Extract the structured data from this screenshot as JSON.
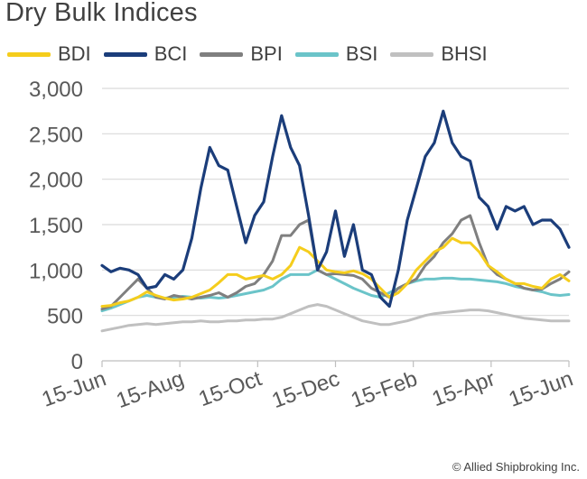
{
  "chart_data": {
    "type": "line",
    "title": "Dry Bulk Indices",
    "xlabel": "",
    "ylabel": "",
    "x_ticks": [
      "15-Jun",
      "15-Aug",
      "15-Oct",
      "15-Dec",
      "15-Feb",
      "15-Apr",
      "15-Jun"
    ],
    "y_ticks": [
      0,
      500,
      1000,
      1500,
      2000,
      2500,
      3000
    ],
    "y_tick_labels": [
      "0",
      "500",
      "1,000",
      "1,500",
      "2,000",
      "2,500",
      "3,000"
    ],
    "ylim": [
      0,
      3000
    ],
    "xlim": [
      0,
      52
    ],
    "grid": "horizontal",
    "legend_position": "top",
    "series": [
      {
        "name": "BDI",
        "color": "#f5cd1c",
        "x": [
          0,
          1,
          2,
          3,
          4,
          5,
          6,
          7,
          8,
          9,
          10,
          11,
          12,
          13,
          14,
          15,
          16,
          17,
          18,
          19,
          20,
          21,
          22,
          23,
          24,
          25,
          26,
          27,
          28,
          29,
          30,
          31,
          32,
          33,
          34,
          35,
          36,
          37,
          38,
          39,
          40,
          41,
          42,
          43,
          44,
          45,
          46,
          47,
          48,
          49,
          50,
          51,
          52
        ],
        "values": [
          600,
          610,
          640,
          660,
          700,
          760,
          720,
          690,
          670,
          680,
          700,
          740,
          780,
          860,
          950,
          950,
          900,
          920,
          940,
          900,
          950,
          1050,
          1250,
          1200,
          1100,
          1000,
          980,
          970,
          990,
          960,
          900,
          800,
          700,
          750,
          850,
          1000,
          1100,
          1200,
          1250,
          1350,
          1300,
          1300,
          1200,
          1050,
          980,
          900,
          850,
          850,
          820,
          800,
          900,
          950,
          880
        ]
      },
      {
        "name": "BCI",
        "color": "#1b3d7a",
        "x": [
          0,
          1,
          2,
          3,
          4,
          5,
          6,
          7,
          8,
          9,
          10,
          11,
          12,
          13,
          14,
          15,
          16,
          17,
          18,
          19,
          20,
          21,
          22,
          23,
          24,
          25,
          26,
          27,
          28,
          29,
          30,
          31,
          32,
          33,
          34,
          35,
          36,
          37,
          38,
          39,
          40,
          41,
          42,
          43,
          44,
          45,
          46,
          47,
          48,
          49,
          50,
          51,
          52
        ],
        "values": [
          1050,
          980,
          1020,
          1000,
          950,
          800,
          820,
          950,
          900,
          1000,
          1350,
          1900,
          2350,
          2150,
          2100,
          1700,
          1300,
          1600,
          1750,
          2250,
          2700,
          2350,
          2150,
          1600,
          1000,
          1200,
          1650,
          1150,
          1500,
          1000,
          950,
          700,
          600,
          1000,
          1550,
          1900,
          2250,
          2400,
          2750,
          2400,
          2250,
          2200,
          1800,
          1700,
          1450,
          1700,
          1650,
          1700,
          1500,
          1550,
          1550,
          1450,
          1250
        ]
      },
      {
        "name": "BPI",
        "color": "#7f7f7f",
        "x": [
          0,
          1,
          2,
          3,
          4,
          5,
          6,
          7,
          8,
          9,
          10,
          11,
          12,
          13,
          14,
          15,
          16,
          17,
          18,
          19,
          20,
          21,
          22,
          23,
          24,
          25,
          26,
          27,
          28,
          29,
          30,
          31,
          32,
          33,
          34,
          35,
          36,
          37,
          38,
          39,
          40,
          41,
          42,
          43,
          44,
          45,
          46,
          47,
          48,
          49,
          50,
          51,
          52
        ],
        "values": [
          570,
          600,
          700,
          800,
          900,
          800,
          700,
          680,
          720,
          700,
          680,
          700,
          720,
          750,
          700,
          750,
          820,
          850,
          950,
          1100,
          1380,
          1380,
          1500,
          1550,
          1000,
          950,
          960,
          950,
          940,
          900,
          800,
          750,
          700,
          800,
          850,
          900,
          1050,
          1150,
          1300,
          1400,
          1550,
          1600,
          1300,
          1050,
          950,
          900,
          850,
          800,
          780,
          790,
          850,
          900,
          980
        ]
      },
      {
        "name": "BSI",
        "color": "#6bc4c9",
        "x": [
          0,
          1,
          2,
          3,
          4,
          5,
          6,
          7,
          8,
          9,
          10,
          11,
          12,
          13,
          14,
          15,
          16,
          17,
          18,
          19,
          20,
          21,
          22,
          23,
          24,
          25,
          26,
          27,
          28,
          29,
          30,
          31,
          32,
          33,
          34,
          35,
          36,
          37,
          38,
          39,
          40,
          41,
          42,
          43,
          44,
          45,
          46,
          47,
          48,
          49,
          50,
          51,
          52
        ],
        "values": [
          550,
          580,
          620,
          660,
          700,
          720,
          700,
          690,
          700,
          710,
          700,
          690,
          700,
          690,
          700,
          720,
          740,
          760,
          780,
          820,
          900,
          950,
          950,
          950,
          1000,
          950,
          900,
          850,
          800,
          760,
          720,
          700,
          750,
          800,
          850,
          880,
          900,
          900,
          910,
          910,
          900,
          900,
          890,
          880,
          870,
          850,
          820,
          800,
          780,
          760,
          730,
          720,
          730
        ]
      },
      {
        "name": "BHSI",
        "color": "#c0c0c0",
        "x": [
          0,
          1,
          2,
          3,
          4,
          5,
          6,
          7,
          8,
          9,
          10,
          11,
          12,
          13,
          14,
          15,
          16,
          17,
          18,
          19,
          20,
          21,
          22,
          23,
          24,
          25,
          26,
          27,
          28,
          29,
          30,
          31,
          32,
          33,
          34,
          35,
          36,
          37,
          38,
          39,
          40,
          41,
          42,
          43,
          44,
          45,
          46,
          47,
          48,
          49,
          50,
          51,
          52
        ],
        "values": [
          330,
          350,
          370,
          390,
          400,
          410,
          400,
          410,
          420,
          430,
          430,
          440,
          430,
          430,
          440,
          440,
          450,
          450,
          460,
          460,
          480,
          520,
          560,
          600,
          620,
          600,
          560,
          520,
          480,
          440,
          420,
          400,
          400,
          420,
          440,
          470,
          500,
          520,
          530,
          540,
          550,
          560,
          560,
          550,
          530,
          510,
          490,
          470,
          460,
          450,
          440,
          440,
          440
        ]
      }
    ]
  },
  "copyright": "© Allied Shipbroking Inc."
}
